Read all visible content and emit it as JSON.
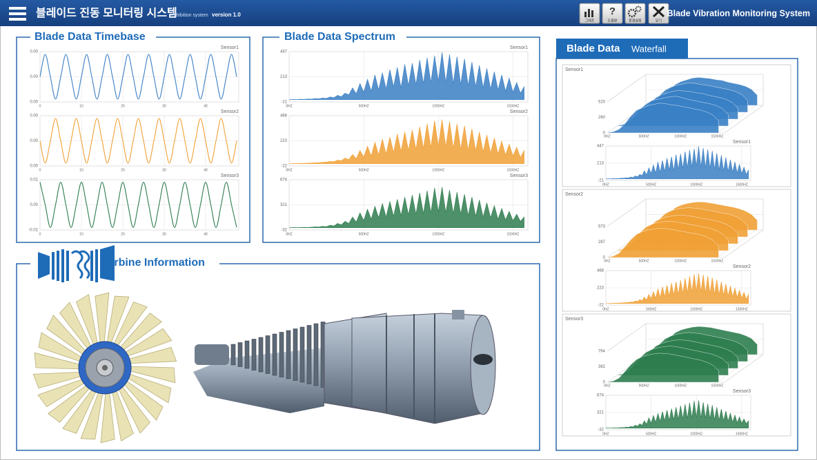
{
  "header": {
    "title": "블레이드 진동 모니터링 시스템",
    "subtitle": "exhibition system",
    "version": "version 1.0",
    "buttons": [
      "그래프",
      "도움말",
      "환경설정",
      "닫기"
    ],
    "brand": "Blade Vibration Monitoring System"
  },
  "turbine": {
    "title": "Turbine Information"
  },
  "chart_data": [
    {
      "type": "line",
      "title": "Blade Data Timebase",
      "x": [
        0,
        1.25,
        2.5,
        3.75,
        5,
        6.25,
        7.5,
        8.75,
        10,
        11.25,
        12.5,
        13.75,
        15,
        16.25,
        17.5,
        18.75,
        20,
        21.25,
        22.5,
        23.75,
        25,
        26.25,
        27.5,
        28.75,
        30,
        31.25,
        32.5,
        33.75,
        35,
        36.25,
        37.5,
        38.75,
        40,
        41.25,
        42.5,
        43.75,
        45,
        46.25,
        47.5
      ],
      "xlim": [
        0,
        48
      ],
      "xticks": [
        0,
        10,
        20,
        30,
        40
      ],
      "grid": true,
      "series": [
        {
          "name": "Sensor1",
          "color": "#3a7fc4",
          "ylim": [
            -0.0045,
            0.0045
          ],
          "yticks": [
            {
              "value": 0.0045,
              "label": "0.00"
            },
            {
              "value": 0,
              "label": "0.00"
            },
            {
              "value": -0.0045,
              "label": "0.00"
            }
          ],
          "values": [
            0,
            0.004,
            0,
            -0.004,
            0,
            0.004,
            0,
            -0.004,
            0,
            0.004,
            0,
            -0.004,
            0,
            0.004,
            0,
            -0.004,
            0,
            0.004,
            0,
            -0.004,
            0,
            0.004,
            0,
            -0.004,
            0,
            0.004,
            0,
            -0.004,
            0,
            0.004,
            0,
            -0.004,
            0,
            0.004,
            0,
            -0.004,
            0,
            0.004,
            0
          ]
        },
        {
          "name": "Sensor2",
          "color": "#f0a035",
          "ylim": [
            -0.0045,
            0.0045
          ],
          "yticks": [
            {
              "value": 0.0045,
              "label": "0.00"
            },
            {
              "value": 0,
              "label": "0.00"
            },
            {
              "value": -0.0045,
              "label": "0.00"
            }
          ],
          "values": [
            0,
            -0.004,
            0,
            0.004,
            0,
            -0.004,
            0,
            0.004,
            0,
            -0.004,
            0,
            0.004,
            0,
            -0.004,
            0,
            0.004,
            0,
            -0.004,
            0,
            0.004,
            0,
            -0.004,
            0,
            0.004,
            0,
            -0.004,
            0,
            0.004,
            0,
            -0.004,
            0,
            0.004,
            0,
            -0.004,
            0,
            0.004,
            0,
            -0.004,
            0
          ]
        },
        {
          "name": "Sensor3",
          "color": "#2e7d4f",
          "ylim": [
            -0.01,
            0.01
          ],
          "yticks": [
            0.01,
            {
              "value": 0,
              "label": "0.00"
            },
            -0.01
          ],
          "values": [
            0.009,
            0,
            -0.009,
            0,
            0.009,
            0,
            -0.009,
            0,
            0.009,
            0,
            -0.009,
            0,
            0.009,
            0,
            -0.009,
            0,
            0.009,
            0,
            -0.009,
            0,
            0.009,
            0,
            -0.009,
            0,
            0.009,
            0,
            -0.009,
            0,
            0.009,
            0,
            -0.009,
            0,
            0.009,
            0,
            -0.009,
            0,
            0.009,
            0,
            -0.009
          ]
        }
      ]
    },
    {
      "type": "area",
      "title": "Blade Data Spectrum",
      "x": [
        0,
        25,
        50,
        75,
        100,
        125,
        150,
        175,
        200,
        225,
        250,
        275,
        300,
        325,
        350,
        375,
        400,
        425,
        450,
        475,
        500,
        525,
        550,
        575,
        600,
        625,
        650,
        675,
        700,
        725,
        750,
        775,
        800,
        825,
        850,
        875,
        900,
        925,
        950,
        975,
        1000,
        1025,
        1050,
        1075,
        1100,
        1125,
        1150,
        1175,
        1200,
        1225,
        1250,
        1275,
        1300,
        1325,
        1350,
        1375,
        1400,
        1425,
        1450,
        1475,
        1500,
        1525,
        1550,
        1575
      ],
      "xlim": [
        0,
        1600
      ],
      "xticks": [
        {
          "value": 0,
          "label": "0HZ"
        },
        {
          "value": 500,
          "label": "500HZ"
        },
        {
          "value": 1000,
          "label": "1000HZ"
        },
        {
          "value": 1500,
          "label": "1500HZ"
        }
      ],
      "grid": true,
      "series": [
        {
          "name": "Sensor1",
          "color": "#3a7fc4",
          "ylim": [
            -21,
            447
          ],
          "yticks": [
            447,
            213,
            -21
          ],
          "values": [
            0,
            2,
            1,
            4,
            3,
            6,
            5,
            10,
            8,
            15,
            12,
            25,
            18,
            40,
            28,
            60,
            45,
            110,
            55,
            150,
            70,
            190,
            80,
            230,
            90,
            250,
            100,
            280,
            120,
            300,
            110,
            330,
            130,
            340,
            140,
            370,
            150,
            390,
            160,
            410,
            170,
            440,
            160,
            420,
            150,
            400,
            140,
            380,
            130,
            350,
            120,
            320,
            110,
            290,
            100,
            260,
            90,
            230,
            80,
            200,
            70,
            160,
            60,
            120
          ]
        },
        {
          "name": "Sensor2",
          "color": "#f0a035",
          "ylim": [
            -22,
            468
          ],
          "yticks": [
            468,
            223,
            -22
          ],
          "values": [
            0,
            1,
            2,
            3,
            4,
            5,
            7,
            9,
            10,
            14,
            16,
            22,
            20,
            35,
            30,
            55,
            40,
            90,
            50,
            130,
            65,
            170,
            75,
            210,
            85,
            240,
            95,
            260,
            110,
            290,
            120,
            310,
            130,
            330,
            140,
            360,
            150,
            390,
            160,
            420,
            170,
            430,
            165,
            410,
            150,
            390,
            140,
            370,
            130,
            340,
            125,
            310,
            115,
            280,
            105,
            250,
            95,
            220,
            85,
            190,
            75,
            160,
            60,
            130
          ]
        },
        {
          "name": "Sensor3",
          "color": "#2e7d4f",
          "ylim": [
            -32,
            674
          ],
          "yticks": [
            674,
            321,
            -32
          ],
          "values": [
            0,
            2,
            1,
            3,
            5,
            4,
            8,
            12,
            10,
            20,
            15,
            35,
            25,
            60,
            40,
            90,
            60,
            150,
            80,
            210,
            100,
            260,
            120,
            300,
            140,
            340,
            150,
            370,
            160,
            400,
            170,
            430,
            180,
            460,
            190,
            490,
            200,
            520,
            210,
            560,
            220,
            570,
            210,
            530,
            200,
            500,
            190,
            470,
            170,
            430,
            160,
            390,
            150,
            350,
            140,
            310,
            120,
            270,
            110,
            230,
            100,
            190,
            90,
            150
          ]
        }
      ]
    },
    {
      "type": "waterfall",
      "title": "Blade Data",
      "subtitle": "Waterfall",
      "x": [
        0,
        80,
        160,
        240,
        320,
        400,
        480,
        560,
        640,
        720,
        800,
        880,
        960,
        1040,
        1120,
        1200,
        1280,
        1360,
        1440,
        1520
      ],
      "xlim": [
        0,
        1600
      ],
      "xticks": [
        {
          "value": 0,
          "label": "0HZ"
        },
        {
          "value": 500,
          "label": "500HZ"
        },
        {
          "value": 1000,
          "label": "1000HZ"
        },
        {
          "value": 1500,
          "label": "1500HZ"
        }
      ],
      "series": [
        {
          "name": "Sensor1",
          "color": "#3a7fc4",
          "ylim": [
            0,
            520
          ],
          "yticks": [
            0,
            260,
            520
          ],
          "slices": [
            [
              5,
              20,
              60,
              150,
              280,
              380,
              420,
              460,
              480,
              500,
              490,
              470,
              460,
              440,
              420,
              400,
              380,
              350,
              300,
              200
            ],
            [
              4,
              25,
              70,
              160,
              290,
              370,
              430,
              450,
              470,
              490,
              500,
              480,
              450,
              430,
              410,
              390,
              370,
              340,
              290,
              190
            ],
            [
              6,
              18,
              55,
              140,
              270,
              360,
              410,
              440,
              470,
              480,
              470,
              460,
              440,
              430,
              400,
              380,
              360,
              330,
              280,
              180
            ],
            [
              5,
              22,
              65,
              155,
              285,
              375,
              425,
              455,
              475,
              495,
              485,
              465,
              455,
              435,
              415,
              395,
              375,
              345,
              295,
              195
            ],
            [
              3,
              15,
              50,
              130,
              260,
              350,
              400,
              430,
              460,
              470,
              460,
              450,
              430,
              420,
              390,
              370,
              350,
              320,
              270,
              170
            ]
          ]
        },
        {
          "name": "Sensor2",
          "color": "#f0a035",
          "ylim": [
            0,
            573
          ],
          "yticks": [
            0,
            287,
            573
          ],
          "slices": [
            [
              5,
              25,
              80,
              200,
              330,
              430,
              480,
              510,
              530,
              540,
              535,
              520,
              500,
              480,
              460,
              440,
              420,
              380,
              320,
              210
            ],
            [
              4,
              28,
              90,
              210,
              340,
              440,
              490,
              520,
              535,
              545,
              530,
              515,
              495,
              475,
              455,
              435,
              410,
              370,
              310,
              200
            ],
            [
              6,
              22,
              75,
              190,
              320,
              420,
              470,
              500,
              520,
              530,
              525,
              510,
              490,
              470,
              450,
              430,
              400,
              360,
              300,
              190
            ],
            [
              5,
              26,
              85,
              205,
              335,
              435,
              485,
              515,
              530,
              540,
              530,
              515,
              495,
              480,
              455,
              435,
              415,
              375,
              315,
              205
            ],
            [
              3,
              20,
              70,
              180,
              310,
              410,
              460,
              490,
              510,
              520,
              515,
              500,
              480,
              460,
              440,
              420,
              390,
              350,
              290,
              180
            ]
          ]
        },
        {
          "name": "Sensor3",
          "color": "#2e7d4f",
          "ylim": [
            0,
            764
          ],
          "yticks": [
            0,
            382,
            764
          ],
          "slices": [
            [
              5,
              30,
              100,
              260,
              430,
              560,
              630,
              670,
              700,
              715,
              705,
              690,
              660,
              630,
              600,
              570,
              540,
              490,
              420,
              280
            ],
            [
              4,
              35,
              110,
              270,
              440,
              570,
              640,
              680,
              705,
              720,
              710,
              680,
              650,
              620,
              590,
              560,
              530,
              480,
              410,
              270
            ],
            [
              6,
              28,
              95,
              250,
              420,
              550,
              620,
              660,
              690,
              705,
              695,
              675,
              645,
              615,
              585,
              555,
              525,
              475,
              405,
              260
            ],
            [
              5,
              32,
              105,
              265,
              435,
              565,
              635,
              675,
              700,
              715,
              700,
              685,
              655,
              625,
              595,
              565,
              535,
              485,
              415,
              275
            ],
            [
              3,
              25,
              90,
              240,
              410,
              540,
              610,
              650,
              680,
              695,
              685,
              670,
              640,
              610,
              580,
              550,
              520,
              470,
              400,
              250
            ]
          ]
        }
      ]
    }
  ]
}
